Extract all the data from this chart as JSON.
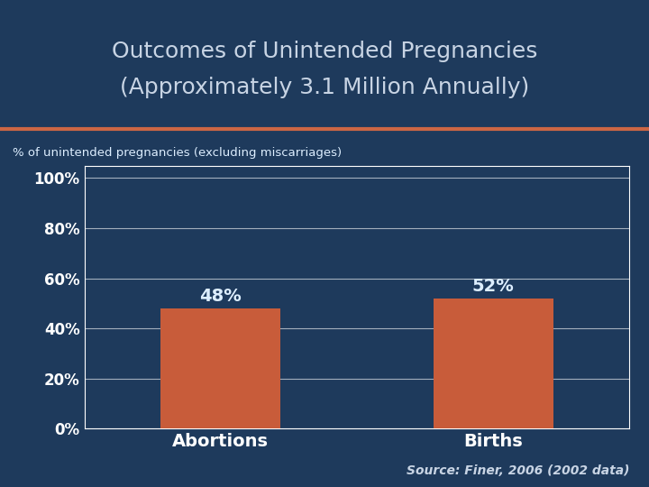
{
  "title_line1": "Outcomes of Unintended Pregnancies",
  "title_line2": "(Approximately 3.1 Million Annually)",
  "ylabel": "% of unintended pregnancies (excluding miscarriages)",
  "categories": [
    "Abortions",
    "Births"
  ],
  "values": [
    48,
    52
  ],
  "bar_color": "#C85C3A",
  "bar_labels": [
    "48%",
    "52%"
  ],
  "yticks": [
    0,
    20,
    40,
    60,
    80,
    100
  ],
  "ytick_labels": [
    "0%",
    "20%",
    "40%",
    "60%",
    "80%",
    "100%"
  ],
  "ylim": [
    0,
    105
  ],
  "background_color": "#1E3A5C",
  "title_color": "#C8D4E4",
  "axis_text_color": "#FFFFFF",
  "ylabel_color": "#DDEEFF",
  "bar_label_color": "#DDEEFF",
  "source_text": "Source: Finer, 2006 (2002 data)",
  "source_color": "#C8D4E4",
  "separator_color": "#CC6644",
  "grid_color": "#FFFFFF",
  "spine_color": "#FFFFFF",
  "title_fontsize": 18,
  "ylabel_fontsize": 9.5,
  "tick_fontsize": 12,
  "bar_label_fontsize": 14,
  "xtick_fontsize": 14,
  "source_fontsize": 10
}
